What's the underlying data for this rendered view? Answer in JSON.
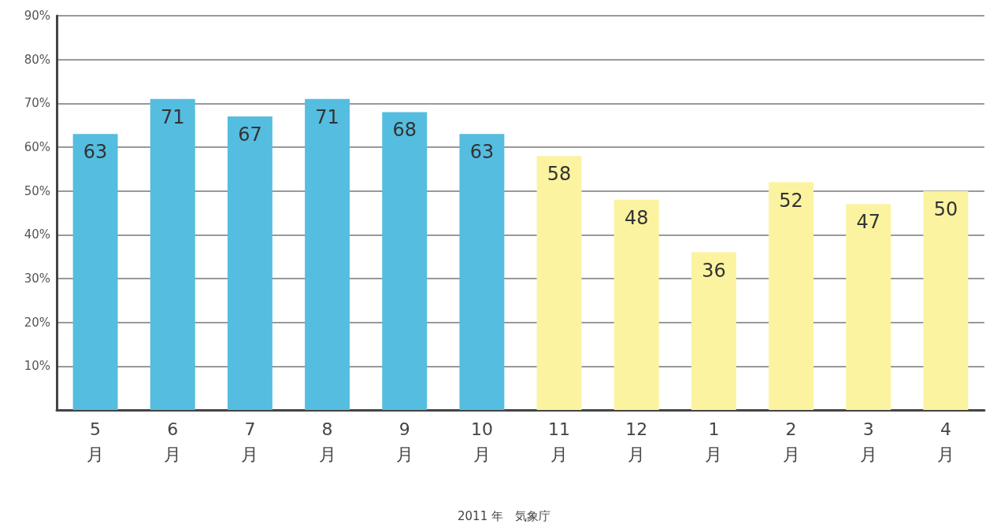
{
  "chart_data": {
    "type": "bar",
    "categories": [
      "5月",
      "6月",
      "7月",
      "8月",
      "9月",
      "10月",
      "11月",
      "12月",
      "1月",
      "2月",
      "3月",
      "4月"
    ],
    "values": [
      63,
      71,
      67,
      71,
      68,
      63,
      58,
      48,
      36,
      52,
      47,
      50
    ],
    "colors": [
      "#55bde0",
      "#55bde0",
      "#55bde0",
      "#55bde0",
      "#55bde0",
      "#55bde0",
      "#fbf3a0",
      "#fbf3a0",
      "#fbf3a0",
      "#fbf3a0",
      "#fbf3a0",
      "#fbf3a0"
    ],
    "ylim": [
      0,
      90
    ],
    "yticks": [
      {
        "value": 10,
        "label": "10%"
      },
      {
        "value": 20,
        "label": "20%"
      },
      {
        "value": 30,
        "label": "30%"
      },
      {
        "value": 40,
        "label": "40%"
      },
      {
        "value": 50,
        "label": "50%"
      },
      {
        "value": 60,
        "label": "60%"
      },
      {
        "value": 70,
        "label": "70%"
      },
      {
        "value": 80,
        "label": "80%"
      },
      {
        "value": 90,
        "label": "90%"
      }
    ],
    "grid": "y",
    "data_labels": true,
    "annotations": [
      "2011 年　気象庁"
    ]
  }
}
